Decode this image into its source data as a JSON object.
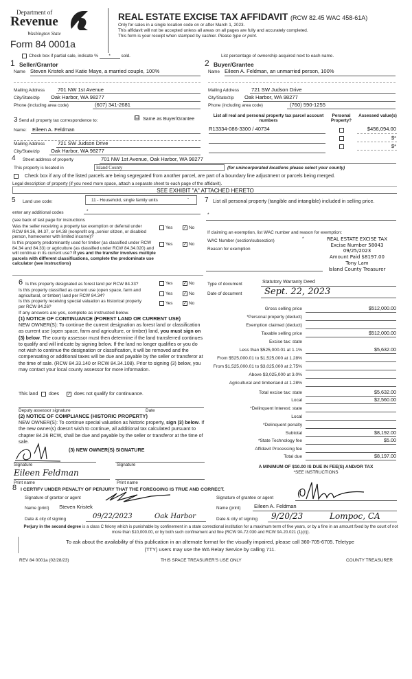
{
  "header": {
    "logo_dept": "Department of",
    "logo_name": "Revenue",
    "logo_state": "Washington State",
    "form_number": "Form 84 0001a",
    "title": "REAL ESTATE EXCISE TAX AFFIDAVIT",
    "title_ref": "(RCW 82.45 WAC 458-61A)",
    "note1": "Only for sales in a single location code on or after March 1, 2023.",
    "note2": "This affidavit will not be accepted unless all areas on all pages are fully and accurately completed.",
    "note3": "This form is your receipt when stamped by cashier.",
    "note3_italic": "Please type or print."
  },
  "partial": {
    "label": "Check box if partial sale, indicate %",
    "value": "*",
    "suffix": "sold.",
    "ownership_note": "List percentage of ownership acquired next to each name."
  },
  "seller": {
    "num": "1",
    "heading": "Seller/Grantor",
    "name_label": "Name",
    "name": "Steven Kristek and Katie Maye, a married couple, 100%",
    "mail_label": "Mailing Address",
    "mail": "701 NW 1st Avenue",
    "city_label": "City/State/zip",
    "city": "Oak Harbor, WA  98277",
    "phone_label": "Phone (including area code)",
    "phone": "(607) 341-2681"
  },
  "buyer": {
    "num": "2",
    "heading": "Buyer/Grantee",
    "name_label": "Name",
    "name": "Eileen A. Feldman, an unmarried person, 100%",
    "mail_label": "Mailing Address",
    "mail": "721 SW Judson Drive",
    "city_label": "City/State/zip",
    "city": "Oak Harbor, WA  98277",
    "phone_label": "Phone (including area code)",
    "phone": "(760) 590-1255"
  },
  "correspondence": {
    "num": "3",
    "label": "Send all property tax correspondence to:",
    "same_label": "Same as Buyer/Grantee",
    "same_checked": true,
    "name_label": "Name:",
    "name": "Eileen A. Feldman",
    "mail_label": "Mailing Address",
    "mail": "721 SW Judson Drive",
    "city_label": "City/State/zip",
    "city": "Oak Harbor, WA  98277"
  },
  "parcels": {
    "header_col1": "List all real and personal property tax parcel account numbers",
    "header_col2": "Personal Property?",
    "header_col3": "Assessed value(s)",
    "rows": [
      {
        "number": "R13334-086-3300  / 40734",
        "value": "$456,094.00"
      },
      {
        "number": "",
        "value": "$*"
      },
      {
        "number": "",
        "value": "$*"
      }
    ]
  },
  "property": {
    "num": "4",
    "street_label": "Street address of property",
    "street": "701 NW 1st Avenue, Oak Harbor, WA 98277",
    "located_label": "This property is located in",
    "county": "Island County",
    "county_note": "(for unincorporated locations please select your county)",
    "segregated_label": "Check box if any of the listed parcels are being segregated from another parcel, are part of a boundary line adjustment or parcels being merged.",
    "legal_label": "Legal description of property (if you need more space, attach a separate sheet to each page of the affidavit).",
    "legal": "SEE EXHIBIT \"A\" ATTACHED HERETO"
  },
  "land_use": {
    "num": "5",
    "label": "Land use code:",
    "code": "11 - Household, single family units",
    "additional_label": "enter any additional codes",
    "additional": "*",
    "see_back": "(see back of last page for instructions"
  },
  "questions": [
    {
      "text": "Was the seller receiving a property tax exemption or deferral under RCW 84.36, 84.37, or 84.38 (nonprofit org.,senior citizen, or disabled person, homeowner with limited income)?",
      "yes": "Yes",
      "no": "No"
    },
    {
      "text": "Is this property predominantly used for timber (as classified under RCW 84.34 and 84.33) or agriculture (as classified under RCW 84.34.020) and will continue in its current use?",
      "bold": "If yes and the transfer involves multiple parcels with different classifications, complete the predominate use calculator (see instructions)",
      "yes": "Yes",
      "no": "No"
    }
  ],
  "section6": {
    "num": "6",
    "q1": "Is this property designated as forest land per RCW 84.33?",
    "q2": "Is this property classified as current use (open space, farm and agricultural, or timber) land per RCW 84.34?",
    "q3": "Is this property receiving special valuation as historical property per RCW 84.26?",
    "yes": "Yes",
    "no": "No",
    "if_any": "If any answers are yes, complete as instructed below.",
    "notice1_title": "(1) NOTICE OF CONTINUANCE (FOREST LAND OR CURRENT USE)",
    "notice1_a": "NEW OWNER(S):  To continue the current designation as forest land or classification as current use (open space, farm and agriculture, or timber) land,",
    "notice1_bold": "you must sign on (3) below",
    ". ": "",
    "notice1_b": ". The county assessor must then determine if the land transferred continues to qualify and will indicate by signing below. If the land no longer qualifies or you do not wish to continue the designation or classification, it will be removed and the compensating or additional taxes will be due and payable by the seller or transferor at the time of sale. (RCW 84.33.140 or RCW 84.34.108).  Prior to signing (3) below, you may contact your local county assessor for more information.",
    "this_land": "This land",
    "does": "does",
    "does_not": "does not qualify for continuance.",
    "deputy": "Deputy assessor signature",
    "date": "Date",
    "notice2_title": "(2) NOTICE OF COMPLIANCE (HISTORIC PROPERTY)",
    "notice2_a": "NEW OWNER(S):  To continue special valuation as historic property,",
    "notice2_bold": "sign (3) below",
    "notice2_b": ". If the new owner(s) doesn't wish to continue, all additional tax calculated pursuant to chapter 84.26 RCW, shall be due and payable by the seller or transferor at the time of sale.",
    "notice3_title": "(3) NEW OWNER(S) SIGNATURE",
    "signature": "Signature",
    "print_name": "Print name",
    "print_name_value": "Eileen Feldman"
  },
  "section7": {
    "num": "7",
    "label": "List all personal property (tangible and intangible) included in selling price.",
    "value": "*",
    "exempt_label": "If claiming an exemption, list WAC number and reason for exemption:",
    "wac_label": "WAC Number (section/subsection)",
    "wac": "*",
    "reason_label": "Reason for exemption"
  },
  "stamp": {
    "line1": "REAL ESTATE EXCISE TAX",
    "line2": "Excise Number 58043",
    "line3": "09/25/2023",
    "line4": "Amount Paid $8197.00",
    "line5": "Tony Lam",
    "line6": "Island County Treasurer"
  },
  "document": {
    "type_label": "Type of document",
    "type": "Statutory Warranty Deed",
    "date_label": "Date of document",
    "date": "Sept. 22, 2023"
  },
  "tax": [
    {
      "label": "Gross selling price",
      "value": "$512,000.00"
    },
    {
      "label": "*Personal property (deduct)",
      "value": ""
    },
    {
      "label": "Exemption claimed (deduct)",
      "value": ""
    },
    {
      "label": "Taxable selling price",
      "value": "$512,000.00"
    },
    {
      "label": "Excise tax: state",
      "value": ""
    },
    {
      "label": "Less than $525,000.01 at 1.1%",
      "value": "$5,632.00"
    },
    {
      "label": "From $525,000.01 to $1,525,000 at 1.28%",
      "value": ""
    },
    {
      "label": "From $1,525,000.01 to $3,025,000 at 2.75%",
      "value": ""
    },
    {
      "label": "Above $3,025,000 at 3.0%",
      "value": ""
    },
    {
      "label": "Agricultural and timberland at 1.28%",
      "value": ""
    },
    {
      "label": "Total excise tax: state",
      "value": "$5,632.00"
    },
    {
      "label": "Local",
      "value": "$2,560.00"
    },
    {
      "label": "*Delinquent Interest: state",
      "value": ""
    },
    {
      "label": "Local",
      "value": ""
    },
    {
      "label": "*Delinquent penalty",
      "value": ""
    },
    {
      "label": "Subtotal",
      "value": "$8,192.00"
    },
    {
      "label": "*State Technology fee",
      "value": "$5.00"
    },
    {
      "label": "Affidavit Processing fee",
      "value": ""
    },
    {
      "label": "Total due",
      "value": "$8,197.00"
    }
  ],
  "minimum": {
    "line1": "A MINIMUM OF $10.00 IS DUE IN FEE(S) AND/OR TAX",
    "line2": "*SEE INSTRUCTIONS"
  },
  "section8": {
    "num": "8",
    "certify": "I CERTIFY UNDER PENALTY OF PERJURY THAT THE FOREGOING IS TRUE AND CORRECT.",
    "grantor_sig_label": "Signature of grantor or agent",
    "grantor_name_label": "Name (print)",
    "grantor_name": "Steven Kristek",
    "grantor_date_label": "Date & city of signing",
    "grantor_date": "09/22/2023",
    "grantor_city": "Oak Harbor",
    "grantee_sig_label": "Signature of grantee or agent",
    "grantee_name_label": "Name (print)",
    "grantee_name": "Eileen A. Feldman",
    "grantee_date_label": "Date & city of signing",
    "grantee_date": "9/20/23",
    "grantee_city": "Lompoc, CA"
  },
  "footer": {
    "perjury_bold": "Perjury in the second degree",
    "perjury": " is a class C felony which is punishable by confinement in a state correctional institution for a maximum term of five years, or by a fine in an amount fixed by the court of not more than $10,000.00, or by both such confinement and fine (RCW 9A.72.030 and RCW 9A.20.021 (1)(c)).",
    "alt1": "To ask about the availability of this publication in an alternate format for the visually impaired, please call 360-705-6705. Teletype",
    "alt2": "(TTY) users may use the WA Relay Service by calling 711.",
    "rev": "REV 84 0001a (02/28/23)",
    "treasurer_only": "THIS SPACE TREASURER'S USE ONLY",
    "county_treasurer": "COUNTY TREASURER"
  }
}
